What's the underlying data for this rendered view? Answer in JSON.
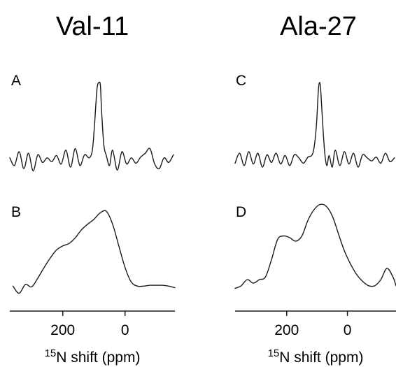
{
  "chart_data": [
    {
      "type": "line",
      "panel": "A",
      "column_title": "Val-11",
      "xlabel_sup": "15",
      "xlabel": "N shift (ppm)",
      "x_reversed": true,
      "xlim": [
        370,
        -160
      ],
      "xticks": [
        200,
        0
      ],
      "show_x_axis": false,
      "series": [
        {
          "x": [
            370,
            355,
            340,
            325,
            310,
            295,
            280,
            265,
            250,
            235,
            220,
            205,
            190,
            175,
            160,
            145,
            130,
            115,
            105,
            98,
            90,
            83,
            79,
            75,
            68,
            60,
            50,
            40,
            25,
            10,
            -5,
            -20,
            -35,
            -50,
            -65,
            -80,
            -95,
            -110,
            -125,
            -140,
            -155
          ],
          "y": [
            0.02,
            -0.08,
            0.1,
            -0.12,
            0.08,
            -0.15,
            0.06,
            -0.04,
            0.02,
            -0.03,
            0.05,
            -0.06,
            0.12,
            -0.1,
            0.14,
            -0.08,
            0.06,
            0.02,
            0.12,
            0.45,
            0.92,
            1.0,
            0.95,
            0.6,
            0.18,
            0.05,
            -0.08,
            0.12,
            -0.14,
            0.1,
            -0.06,
            0.02,
            -0.05,
            0.03,
            0.08,
            0.14,
            -0.06,
            -0.12,
            0.02,
            -0.04,
            0.06
          ]
        }
      ]
    },
    {
      "type": "line",
      "panel": "B",
      "column_title": "Val-11",
      "xlabel_sup": "15",
      "xlabel": "N shift (ppm)",
      "x_reversed": true,
      "xlim": [
        370,
        -160
      ],
      "xticks": [
        200,
        0
      ],
      "show_x_axis": true,
      "series": [
        {
          "x": [
            360,
            340,
            320,
            300,
            280,
            260,
            240,
            220,
            200,
            180,
            160,
            140,
            120,
            100,
            80,
            60,
            40,
            20,
            0,
            -20,
            -40,
            -60,
            -80,
            -100,
            -120,
            -140,
            -160
          ],
          "y": [
            0.05,
            -0.04,
            0.07,
            0.04,
            0.15,
            0.28,
            0.4,
            0.5,
            0.55,
            0.58,
            0.65,
            0.75,
            0.82,
            0.88,
            0.96,
            0.98,
            0.82,
            0.55,
            0.28,
            0.1,
            0.05,
            0.05,
            0.06,
            0.06,
            0.06,
            0.05,
            0.03
          ]
        }
      ]
    },
    {
      "type": "line",
      "panel": "C",
      "column_title": "Ala-27",
      "xlabel_sup": "15",
      "xlabel": "N shift (ppm)",
      "x_reversed": true,
      "xlim": [
        370,
        -160
      ],
      "xticks": [
        200,
        0
      ],
      "show_x_axis": false,
      "series": [
        {
          "x": [
            370,
            355,
            340,
            325,
            310,
            295,
            280,
            265,
            250,
            235,
            220,
            205,
            190,
            175,
            160,
            145,
            130,
            118,
            110,
            102,
            96,
            92,
            88,
            82,
            75,
            68,
            60,
            50,
            40,
            25,
            10,
            -5,
            -20,
            -35,
            -50,
            -65,
            -80,
            -95,
            -110,
            -125,
            -140,
            -155
          ],
          "y": [
            -0.05,
            0.08,
            -0.08,
            0.1,
            -0.06,
            0.08,
            -0.1,
            0.06,
            -0.04,
            0.08,
            -0.06,
            0.05,
            -0.08,
            0.06,
            0.02,
            -0.05,
            0.03,
            0.05,
            0.15,
            0.45,
            0.88,
            1.0,
            0.9,
            0.5,
            0.1,
            -0.08,
            0.05,
            -0.1,
            0.12,
            -0.08,
            0.1,
            -0.06,
            0.08,
            -0.1,
            0.06,
            0.02,
            -0.02,
            0.03,
            -0.05,
            0.08,
            -0.03,
            0.02
          ]
        }
      ]
    },
    {
      "type": "line",
      "panel": "D",
      "column_title": "Ala-27",
      "xlabel_sup": "15",
      "xlabel": "N shift (ppm)",
      "x_reversed": true,
      "xlim": [
        370,
        -160
      ],
      "xticks": [
        200,
        0
      ],
      "show_x_axis": true,
      "series": [
        {
          "x": [
            370,
            350,
            330,
            310,
            290,
            270,
            250,
            230,
            210,
            190,
            170,
            150,
            130,
            110,
            90,
            70,
            50,
            30,
            10,
            -10,
            -30,
            -50,
            -70,
            -90,
            -110,
            -130,
            -150,
            -160
          ],
          "y": [
            0.02,
            0.05,
            0.12,
            0.08,
            0.12,
            0.15,
            0.35,
            0.58,
            0.62,
            0.6,
            0.56,
            0.62,
            0.8,
            0.92,
            0.98,
            0.96,
            0.85,
            0.65,
            0.45,
            0.3,
            0.18,
            0.1,
            0.05,
            0.05,
            0.12,
            0.25,
            0.15,
            0.05
          ]
        }
      ]
    }
  ]
}
